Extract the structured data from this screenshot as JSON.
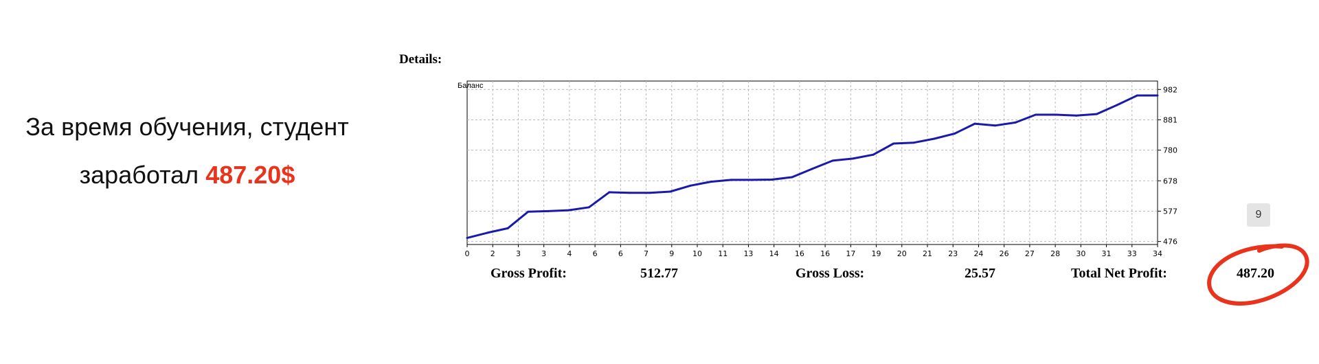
{
  "caption": {
    "line1": "За время обучения, студент",
    "line2_prefix": "заработал ",
    "line2_highlight": "487.20$"
  },
  "details_label": "Details:",
  "stats": {
    "gross_profit_label": "Gross Profit:",
    "gross_profit_value": "512.77",
    "gross_loss_label": "Gross Loss:",
    "gross_loss_value": "25.57",
    "total_net_profit_label": "Total Net Profit:",
    "total_net_profit_value": "487.20"
  },
  "page_badge": "9",
  "colors": {
    "accent_red": "#e8341c",
    "line_blue": "#1a1aaa"
  },
  "chart_data": {
    "type": "line",
    "title": "Баланс",
    "x_tick_labels": [
      "0",
      "2",
      "3",
      "3",
      "4",
      "6",
      "6",
      "7",
      "9",
      "10",
      "11",
      "13",
      "14",
      "16",
      "16",
      "17",
      "19",
      "20",
      "21",
      "23",
      "24",
      "26",
      "27",
      "28",
      "30",
      "31",
      "33",
      "34"
    ],
    "y_ticks": [
      476,
      577,
      678,
      780,
      881,
      982
    ],
    "ylim": [
      466,
      1010
    ],
    "grid": true,
    "series": [
      {
        "x": [
          0,
          1,
          2,
          3,
          4,
          5,
          6,
          7,
          8,
          9,
          10,
          11,
          12,
          13,
          14,
          15,
          16,
          17,
          18,
          19,
          20,
          21,
          22,
          23,
          24,
          25,
          26,
          27,
          28,
          29,
          30,
          31,
          32,
          33,
          34
        ],
        "values": [
          488,
          505,
          520,
          575,
          577,
          580,
          590,
          640,
          638,
          638,
          642,
          662,
          675,
          681,
          681,
          682,
          690,
          718,
          745,
          752,
          765,
          802,
          805,
          818,
          835,
          868,
          862,
          872,
          898,
          898,
          895,
          900,
          930,
          962,
          962
        ]
      }
    ]
  }
}
